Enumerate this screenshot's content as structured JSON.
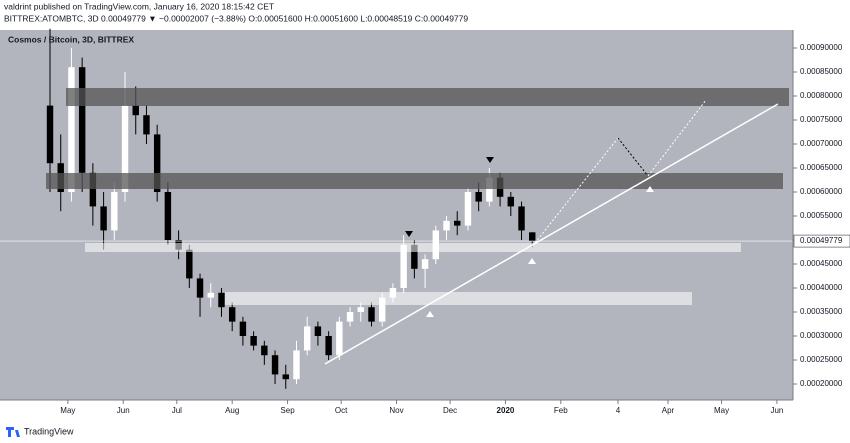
{
  "chart_data": {
    "type": "candlestick",
    "publisher": "valdrint published on TradingView.com, January 16, 2020 18:15:42 CET",
    "symbol_line": "BITTREX:ATOMBTC, 3D  0.00049779 ▼ −0.00002007 (−3.88%)  O:0.00051600  H:0.00051600  L:0.00048519  C:0.00049779",
    "title": "Cosmos / Bitcoin, 3D, BITTREX",
    "footer": "TradingView",
    "x": [
      110,
      116,
      122,
      128,
      134,
      140,
      146,
      152,
      158,
      164,
      170,
      176,
      182,
      188,
      194,
      200,
      206,
      212,
      218,
      224,
      230,
      236,
      242,
      248,
      254,
      260,
      266,
      272,
      278,
      284,
      290,
      296,
      302,
      308,
      314,
      320,
      326,
      332,
      338,
      344,
      350,
      356,
      362,
      368,
      374,
      380
    ],
    "open": [
      0.00078,
      0.00066,
      0.0006,
      0.00086,
      0.00064,
      0.00057,
      0.00052,
      0.0006,
      0.00078,
      0.00076,
      0.00072,
      0.0006,
      0.0005,
      0.00048,
      0.00042,
      0.00038,
      0.00039,
      0.00036,
      0.00033,
      0.0003,
      0.00028,
      0.00026,
      0.00022,
      0.00021,
      0.00027,
      0.00032,
      0.0003,
      0.00026,
      0.00033,
      0.00035,
      0.00036,
      0.00033,
      0.00038,
      0.0004,
      0.00049,
      0.00044,
      0.00046,
      0.00052,
      0.00054,
      0.00053,
      0.0006,
      0.00058,
      0.00063,
      0.00059,
      0.00057,
      0.000516
    ],
    "high": [
      0.00094,
      0.00072,
      0.0009,
      0.00088,
      0.00066,
      0.0006,
      0.00062,
      0.00085,
      0.00082,
      0.00078,
      0.00074,
      0.00062,
      0.00052,
      0.00049,
      0.00043,
      0.00041,
      0.0004,
      0.00037,
      0.00034,
      0.00031,
      0.00029,
      0.00027,
      0.00024,
      0.00029,
      0.00034,
      0.00033,
      0.00031,
      0.00034,
      0.00036,
      0.00037,
      0.00037,
      0.00039,
      0.00041,
      0.00051,
      0.0005,
      0.00047,
      0.00053,
      0.00055,
      0.00056,
      0.00061,
      0.00062,
      0.00065,
      0.00064,
      0.0006,
      0.00058,
      0.000516
    ],
    "low": [
      0.0006,
      0.00056,
      0.00058,
      0.0006,
      0.00053,
      0.00048,
      0.0005,
      0.00058,
      0.00072,
      0.0007,
      0.00058,
      0.00049,
      0.00046,
      0.0004,
      0.00034,
      0.00036,
      0.00034,
      0.00031,
      0.00028,
      0.00027,
      0.00024,
      0.0002,
      0.00019,
      0.0002,
      0.00026,
      0.00028,
      0.00025,
      0.00025,
      0.00032,
      0.00033,
      0.00032,
      0.00032,
      0.00037,
      0.00039,
      0.00042,
      0.0004,
      0.00045,
      0.0005,
      0.00051,
      0.00052,
      0.00056,
      0.00057,
      0.00057,
      0.00055,
      0.0005,
      0.00048519
    ],
    "close": [
      0.00066,
      0.0006,
      0.00086,
      0.00064,
      0.00057,
      0.00052,
      0.0006,
      0.00078,
      0.00076,
      0.00072,
      0.0006,
      0.0005,
      0.00048,
      0.00042,
      0.00038,
      0.00039,
      0.00036,
      0.00033,
      0.0003,
      0.00028,
      0.00026,
      0.00022,
      0.00021,
      0.00027,
      0.00032,
      0.0003,
      0.00026,
      0.00033,
      0.00035,
      0.00036,
      0.00033,
      0.00038,
      0.0004,
      0.00049,
      0.00044,
      0.00046,
      0.00052,
      0.00054,
      0.00053,
      0.0006,
      0.00058,
      0.00063,
      0.00059,
      0.00057,
      0.00052,
      0.00049779
    ],
    "up_color": "#ffffff",
    "down_color": "#000000",
    "background": "#b2b5be",
    "last_price": {
      "value": 0.00049779,
      "label": "0.00049779"
    },
    "xlim": [
      82,
      526
    ],
    "xticks": [
      {
        "value": 120,
        "label": "May"
      },
      {
        "value": 151,
        "label": "Jun"
      },
      {
        "value": 181,
        "label": "Jul"
      },
      {
        "value": 212,
        "label": "Aug"
      },
      {
        "value": 243,
        "label": "Sep"
      },
      {
        "value": 273,
        "label": "Oct"
      },
      {
        "value": 304,
        "label": "Nov"
      },
      {
        "value": 334,
        "label": "Dec"
      },
      {
        "value": 365,
        "label": "2020"
      },
      {
        "value": 396,
        "label": "Feb"
      },
      {
        "value": 428,
        "label": "4"
      },
      {
        "value": 456,
        "label": "Apr"
      },
      {
        "value": 486,
        "label": "May"
      },
      {
        "value": 517,
        "label": "Jun"
      }
    ],
    "ylim": [
      0.0001667,
      0.0009375
    ],
    "yticks": [
      {
        "value": 0.0002,
        "label": "0.00020000"
      },
      {
        "value": 0.00025,
        "label": "0.00025000"
      },
      {
        "value": 0.0003,
        "label": "0.00030000"
      },
      {
        "value": 0.00035,
        "label": "0.00035000"
      },
      {
        "value": 0.0004,
        "label": "0.00040000"
      },
      {
        "value": 0.00045,
        "label": "0.00045000"
      },
      {
        "value": 0.0005,
        "label": "0.00050000"
      },
      {
        "value": 0.00055,
        "label": "0.00055000"
      },
      {
        "value": 0.0006,
        "label": "0.00060000"
      },
      {
        "value": 0.00065,
        "label": "0.00065000"
      },
      {
        "value": 0.0007,
        "label": "0.00070000"
      },
      {
        "value": 0.00075,
        "label": "0.00075000"
      },
      {
        "value": 0.0008,
        "label": "0.00080000"
      },
      {
        "value": 0.00085,
        "label": "0.00085000"
      },
      {
        "value": 0.0009,
        "label": "0.00090000"
      }
    ]
  }
}
